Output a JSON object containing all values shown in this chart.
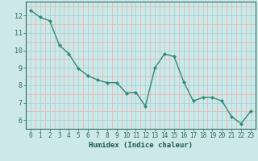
{
  "x": [
    0,
    1,
    2,
    3,
    4,
    5,
    6,
    7,
    8,
    9,
    10,
    11,
    12,
    13,
    14,
    15,
    16,
    17,
    18,
    19,
    20,
    21,
    22,
    23
  ],
  "y": [
    12.3,
    11.9,
    11.7,
    10.3,
    9.8,
    8.95,
    8.55,
    8.3,
    8.15,
    8.15,
    7.55,
    7.6,
    6.8,
    9.0,
    9.8,
    9.65,
    8.2,
    7.1,
    7.3,
    7.3,
    7.1,
    6.2,
    5.8,
    6.5
  ],
  "line_color": "#2e8b7a",
  "marker": "D",
  "marker_size": 2.2,
  "bg_color": "#cce8e8",
  "xlabel": "Humidex (Indice chaleur)",
  "yticks": [
    6,
    7,
    8,
    9,
    10,
    11,
    12
  ],
  "xticks": [
    0,
    1,
    2,
    3,
    4,
    5,
    6,
    7,
    8,
    9,
    10,
    11,
    12,
    13,
    14,
    15,
    16,
    17,
    18,
    19,
    20,
    21,
    22,
    23
  ],
  "xlim": [
    -0.5,
    23.5
  ],
  "ylim": [
    5.5,
    12.8
  ],
  "tick_color": "#2e6b5a",
  "label_color": "#1a5a4a",
  "major_grid_color": "#a8d4d4",
  "minor_grid_color": "#e8b8b8"
}
